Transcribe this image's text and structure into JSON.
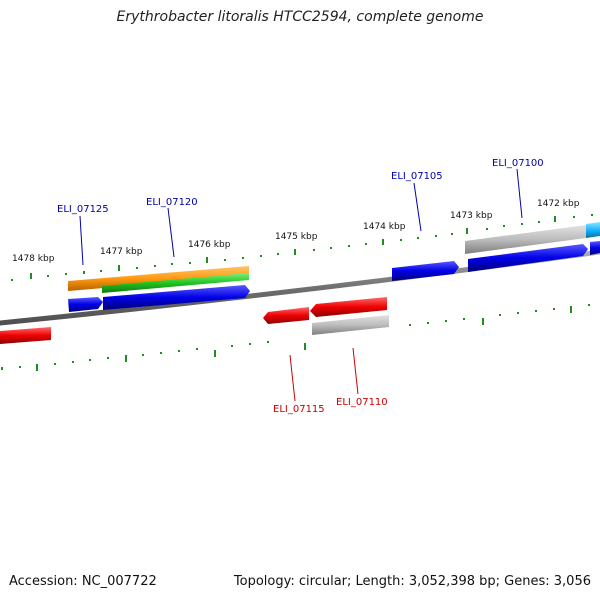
{
  "title": "Erythrobacter litoralis HTCC2594, complete genome",
  "footer": {
    "accession": "Accession: NC_007722",
    "summary": "Topology: circular; Length: 3,052,398 bp; Genes: 3,056"
  },
  "colors": {
    "forward_label": "#0000aa",
    "reverse_label": "#cc0000",
    "backbone": "#808080",
    "tick": "#228b22"
  },
  "scale_labels": [
    "1472 kbp",
    "1473 kbp",
    "1474 kbp",
    "1475 kbp",
    "1476 kbp",
    "1477 kbp",
    "1478 kbp"
  ],
  "gene_labels": {
    "forward": [
      "ELI_07100",
      "ELI_07105",
      "ELI_07120",
      "ELI_07125"
    ],
    "reverse": [
      "ELI_07110",
      "ELI_07115"
    ]
  }
}
